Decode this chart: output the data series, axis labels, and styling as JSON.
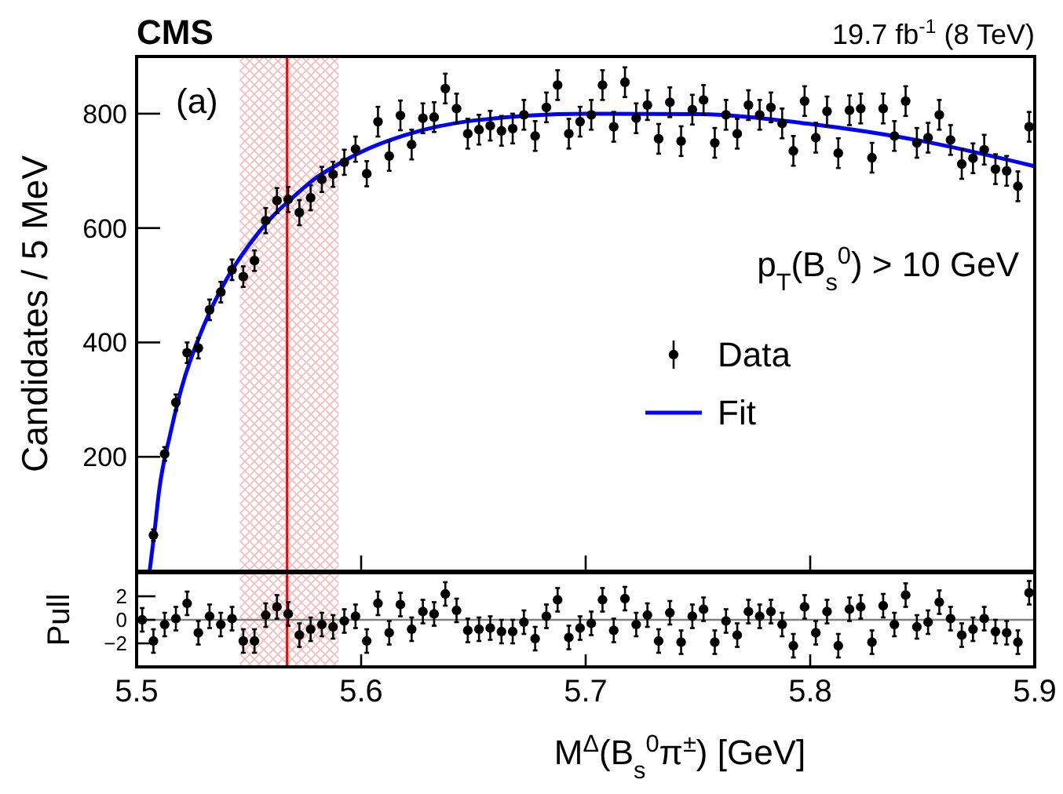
{
  "chart_data": [
    {
      "type": "scatter",
      "title": "CMS",
      "subtitle": "19.7 fb$^{-1}$ (8 TeV)",
      "ylabel": "Candidates / 5 MeV",
      "annotations": [
        "(a)",
        "p$_{T}$(B$_{s}$$^{0}$) > 10 GeV"
      ],
      "xlim": [
        5.5,
        5.9
      ],
      "xticks": [
        5.5,
        5.6,
        5.7,
        5.8,
        5.9
      ],
      "ylim": [
        0,
        900
      ],
      "yticks": [
        200,
        400,
        600,
        800
      ],
      "tick_labels": "y",
      "grid": false,
      "legend": "right",
      "ref_lines": [
        {
          "axis": "x",
          "value": 5.567,
          "color": "#ff0000"
        }
      ],
      "bands": [
        {
          "axis": "x",
          "from": 5.546,
          "to": 5.59,
          "color": "#f8b8b8"
        }
      ],
      "series": [
        {
          "name": "Data",
          "marker": "circle",
          "color": "#000000",
          "x": [
            5.5075,
            5.5125,
            5.5175,
            5.5225,
            5.5275,
            5.5325,
            5.5375,
            5.5425,
            5.5475,
            5.5525,
            5.5575,
            5.5625,
            5.5675,
            5.5725,
            5.5775,
            5.5825,
            5.5875,
            5.5925,
            5.5975,
            5.6025,
            5.6075,
            5.6125,
            5.6175,
            5.6225,
            5.6275,
            5.6325,
            5.6375,
            5.6425,
            5.6475,
            5.6525,
            5.6575,
            5.6625,
            5.6675,
            5.6725,
            5.6775,
            5.6825,
            5.6875,
            5.6925,
            5.6975,
            5.7025,
            5.7075,
            5.7125,
            5.7175,
            5.7225,
            5.7275,
            5.7325,
            5.7375,
            5.7425,
            5.7475,
            5.7525,
            5.7575,
            5.7625,
            5.7675,
            5.7725,
            5.7775,
            5.7825,
            5.7875,
            5.7925,
            5.7975,
            5.8025,
            5.8075,
            5.8125,
            5.8175,
            5.8225,
            5.8275,
            5.8325,
            5.8375,
            5.8425,
            5.8475,
            5.8525,
            5.8575,
            5.8625,
            5.8675,
            5.8725,
            5.8775,
            5.8825,
            5.8875,
            5.8925,
            5.8975
          ],
          "values": [
            63,
            205,
            295,
            382,
            390,
            457,
            488,
            527,
            515,
            543,
            613,
            648,
            650,
            627,
            653,
            685,
            694,
            715,
            738,
            695,
            786,
            726,
            797,
            746,
            792,
            794,
            844,
            809,
            765,
            772,
            779,
            770,
            774,
            798,
            761,
            811,
            850,
            765,
            786,
            798,
            850,
            777,
            855,
            792,
            815,
            756,
            820,
            752,
            807,
            824,
            749,
            798,
            765,
            815,
            798,
            811,
            783,
            735,
            822,
            758,
            804,
            731,
            806,
            809,
            723,
            809,
            761,
            822,
            749,
            758,
            798,
            754,
            712,
            722,
            737,
            703,
            700,
            673,
            777
          ],
          "errors": [
            10,
            12,
            14,
            18,
            18,
            18,
            18,
            18,
            18,
            18,
            22,
            22,
            22,
            22,
            22,
            22,
            22,
            22,
            22,
            22,
            26,
            26,
            26,
            26,
            26,
            26,
            26,
            26,
            26,
            26,
            26,
            26,
            26,
            26,
            26,
            26,
            26,
            26,
            26,
            26,
            26,
            26,
            26,
            26,
            26,
            26,
            26,
            26,
            26,
            26,
            26,
            26,
            26,
            26,
            26,
            26,
            26,
            26,
            26,
            26,
            26,
            26,
            26,
            26,
            26,
            26,
            26,
            26,
            26,
            26,
            26,
            26,
            26,
            26,
            26,
            26,
            26,
            26,
            26
          ]
        },
        {
          "name": "Fit",
          "type": "line",
          "color": "#0000ff",
          "x": [
            5.5058,
            5.508,
            5.51,
            5.515,
            5.52,
            5.53,
            5.54,
            5.55,
            5.56,
            5.57,
            5.58,
            5.59,
            5.6,
            5.62,
            5.65,
            5.7,
            5.75,
            5.8,
            5.85,
            5.9
          ],
          "values": [
            0,
            70,
            140,
            240,
            320,
            430,
            510,
            570,
            618,
            655,
            688,
            712,
            733,
            763,
            788,
            800,
            799,
            782,
            752,
            708
          ]
        }
      ]
    },
    {
      "type": "scatter",
      "xlabel": "M$^{Δ}$(B$_{s}$$^{0}$π$^{±}$) [GeV]",
      "ylabel": "Pull",
      "xlim": [
        5.5,
        5.9
      ],
      "xticks": [
        5.5,
        5.6,
        5.7,
        5.8,
        5.9
      ],
      "ylim": [
        -4,
        4
      ],
      "yticks": [
        -2,
        0,
        2
      ],
      "grid": false,
      "marker": "circle",
      "ref_lines": [
        {
          "axis": "y",
          "value": 0,
          "color": "#808080"
        },
        {
          "axis": "x",
          "value": 5.567,
          "color": "#ff0000"
        }
      ],
      "bands": [
        {
          "axis": "x",
          "from": 5.546,
          "to": 5.59,
          "color": "#f8b8b8"
        }
      ],
      "series": [
        {
          "color": "#000000",
          "x": [
            5.5025,
            5.5075,
            5.5125,
            5.5175,
            5.5225,
            5.5275,
            5.5325,
            5.5375,
            5.5425,
            5.5475,
            5.5525,
            5.5575,
            5.5625,
            5.5675,
            5.5725,
            5.5775,
            5.5825,
            5.5875,
            5.5925,
            5.5975,
            5.6025,
            5.6075,
            5.6125,
            5.6175,
            5.6225,
            5.6275,
            5.6325,
            5.6375,
            5.6425,
            5.6475,
            5.6525,
            5.6575,
            5.6625,
            5.6675,
            5.6725,
            5.6775,
            5.6825,
            5.6875,
            5.6925,
            5.6975,
            5.7025,
            5.7075,
            5.7125,
            5.7175,
            5.7225,
            5.7275,
            5.7325,
            5.7375,
            5.7425,
            5.7475,
            5.7525,
            5.7575,
            5.7625,
            5.7675,
            5.7725,
            5.7775,
            5.7825,
            5.7875,
            5.7925,
            5.7975,
            5.8025,
            5.8075,
            5.8125,
            5.8175,
            5.8225,
            5.8275,
            5.8325,
            5.8375,
            5.8425,
            5.8475,
            5.8525,
            5.8575,
            5.8625,
            5.8675,
            5.8725,
            5.8775,
            5.8825,
            5.8875,
            5.8925,
            5.8975
          ],
          "values": [
            0,
            -1.8,
            -0.4,
            0.1,
            1.4,
            -1.1,
            0.3,
            -0.4,
            0.1,
            -1.8,
            -1.8,
            0.4,
            1.1,
            0.5,
            -1.3,
            -0.8,
            -0.4,
            -0.6,
            -0.1,
            0.3,
            -1.8,
            1.4,
            -1.1,
            1.3,
            -0.8,
            0.7,
            0.5,
            2.2,
            0.8,
            -0.9,
            -0.8,
            -0.7,
            -1,
            -1,
            -0.2,
            -1.6,
            0.3,
            1.7,
            -1.5,
            -0.7,
            -0.3,
            1.7,
            -0.9,
            1.8,
            -0.4,
            0.4,
            -1.8,
            0.6,
            -1.9,
            0.3,
            0.9,
            -1.9,
            -0.1,
            -1.3,
            0.7,
            0.3,
            0.7,
            -0.4,
            -2.2,
            1.1,
            -1.1,
            0.7,
            -2.2,
            0.9,
            1.1,
            -1.9,
            1.2,
            -0.4,
            2.1,
            -0.6,
            -0.2,
            1.5,
            0.1,
            -1.3,
            -0.8,
            0.1,
            -1,
            -1.1,
            -1.9,
            2.3
          ],
          "errors": [
            1,
            1,
            1,
            1,
            1,
            1,
            1,
            1,
            1,
            1,
            1,
            1,
            1,
            1,
            1,
            1,
            1,
            1,
            1,
            1,
            1,
            1,
            1,
            1,
            1,
            1,
            1,
            1,
            1,
            1,
            1,
            1,
            1,
            1,
            1,
            1,
            1,
            1,
            1,
            1,
            1,
            1,
            1,
            1,
            1,
            1,
            1,
            1,
            1,
            1,
            1,
            1,
            1,
            1,
            1,
            1,
            1,
            1,
            1,
            1,
            1,
            1,
            1,
            1,
            1,
            1,
            1,
            1,
            1,
            1,
            1,
            1,
            1,
            1,
            1,
            1,
            1,
            1,
            1,
            1
          ]
        }
      ]
    }
  ]
}
